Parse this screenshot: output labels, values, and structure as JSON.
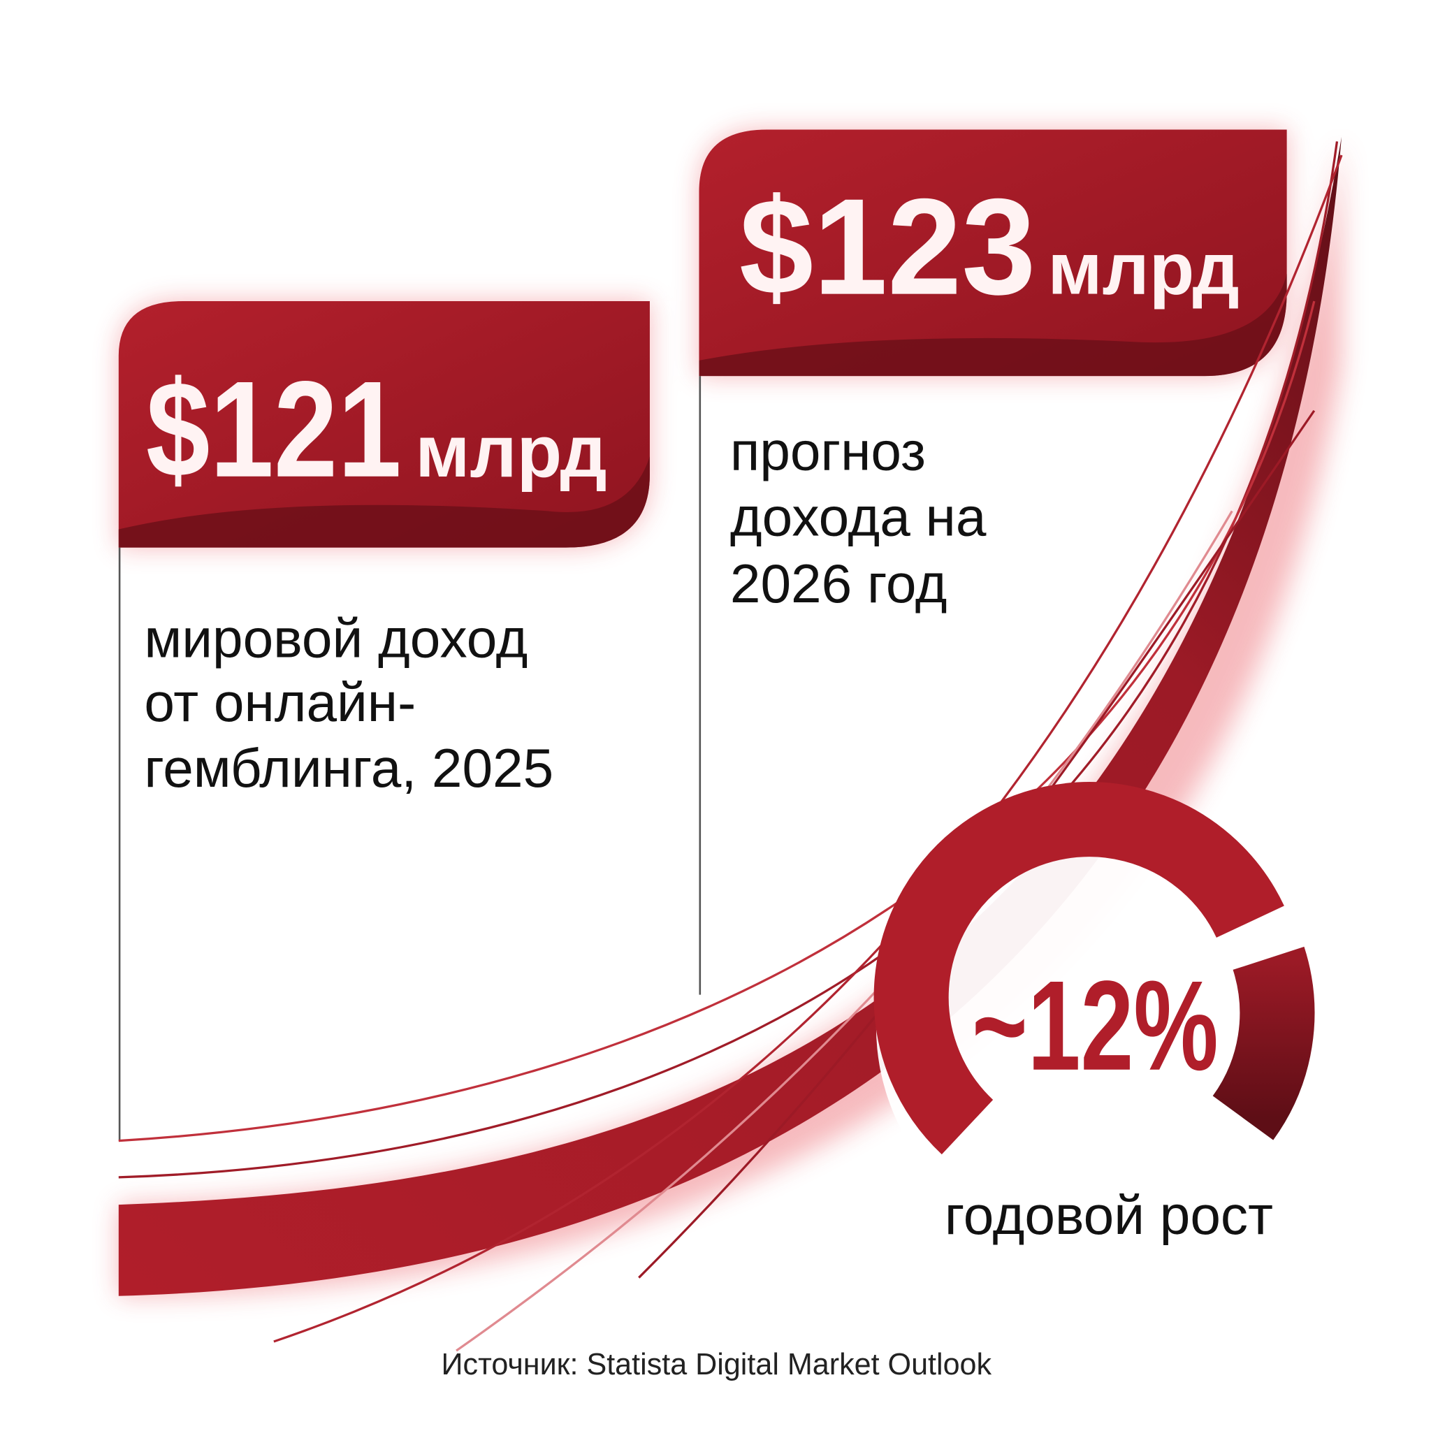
{
  "cards": [
    {
      "amount": "$121",
      "unit": "млрд",
      "lines": [
        "мировой доход",
        "от онлайн-",
        "гемблинга, 2025"
      ]
    },
    {
      "amount": "$123",
      "unit": "млрд",
      "lines": [
        "прогноз",
        "дохода на",
        "2026 год"
      ]
    }
  ],
  "growth": {
    "value": "~12%",
    "label": "годовой рост"
  },
  "source": "Источник: Statista Digital Market Outlook"
}
